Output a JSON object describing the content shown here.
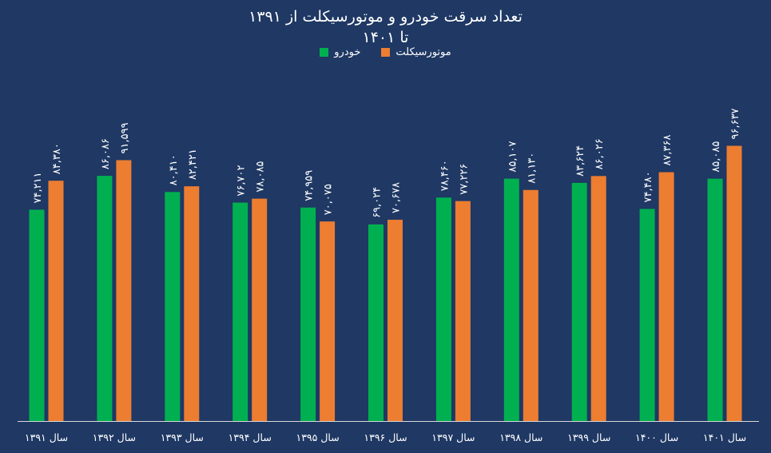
{
  "chart_data": {
    "type": "bar",
    "title_line1": "تعداد سرقت خودرو و موتورسیکلت از ۱۳۹۱",
    "title_line2": "تا ۱۴۰۱",
    "legend_position": "top-center",
    "grid": false,
    "ylim": [
      0,
      131000
    ],
    "categories": [
      "سال ۱۳۹۱",
      "سال ۱۳۹۲",
      "سال ۱۳۹۳",
      "سال ۱۳۹۴",
      "سال ۱۳۹۵",
      "سال ۱۳۹۶",
      "سال ۱۳۹۷",
      "سال ۱۳۹۸",
      "سال ۱۳۹۹",
      "سال ۱۴۰۰",
      "سال ۱۴۰۱"
    ],
    "series": [
      {
        "name": "خودرو",
        "color": "#00b050",
        "values": [
          74211,
          86086,
          80410,
          76702,
          74959,
          69024,
          78460,
          85107,
          83624,
          74480,
          85085
        ],
        "labels": [
          "۷۴,۲۱۱",
          "۸۶,۰۸۶",
          "۸۰,۴۱۰",
          "۷۶,۷۰۲",
          "۷۴,۹۵۹",
          "۶۹,۰۲۴",
          "۷۸,۴۶۰",
          "۸۵,۱۰۷",
          "۸۳,۶۲۴",
          "۷۴,۴۸۰",
          "۸۵,۰۸۵"
        ]
      },
      {
        "name": "موتورسیکلت",
        "color": "#ed7d31",
        "values": [
          84380,
          91599,
          82421,
          78085,
          70075,
          70678,
          77226,
          81130,
          86026,
          87368,
          96637
        ],
        "labels": [
          "۸۴,۳۸۰",
          "۹۱,۵۹۹",
          "۸۲,۴۲۱",
          "۷۸,۰۸۵",
          "۷۰,۰۷۵",
          "۷۰,۶۷۸",
          "۷۷,۲۲۶",
          "۸۱,۱۳۰",
          "۸۶,۰۲۶",
          "۸۷,۳۶۸",
          "۹۶,۶۳۷"
        ]
      }
    ]
  },
  "colors": {
    "background": "#1f3864",
    "axis": "#d9d9d9"
  }
}
